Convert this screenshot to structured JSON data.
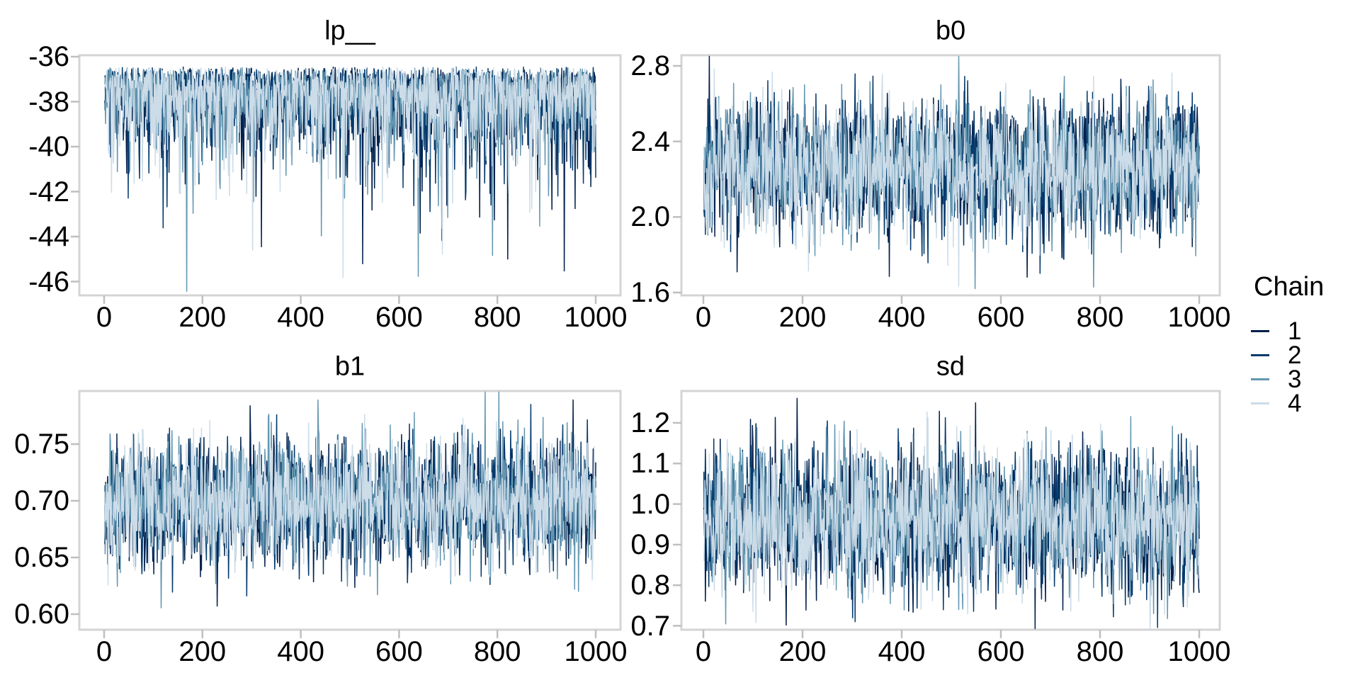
{
  "style": {
    "background": "#ffffff",
    "panel_border_color": "#d4d4d4",
    "tick_mark_color": "#bfbfbf",
    "text_color": "#000000"
  },
  "legend": {
    "title": "Chain",
    "items": [
      {
        "label": "1",
        "color": "#011f4b"
      },
      {
        "label": "2",
        "color": "#03396c"
      },
      {
        "label": "3",
        "color": "#6497b1"
      },
      {
        "label": "4",
        "color": "#ccdce8"
      }
    ]
  },
  "chart_data": [
    {
      "type": "line",
      "subtype": "mcmc_trace",
      "title": "lp__",
      "x_tick_labels": [
        "0",
        "200",
        "400",
        "600",
        "800",
        "1000"
      ],
      "x_tick_values": [
        0,
        200,
        400,
        600,
        800,
        1000
      ],
      "y_tick_labels": [
        "-36",
        "-38",
        "-40",
        "-42",
        "-44",
        "-46"
      ],
      "y_tick_values": [
        -36,
        -38,
        -40,
        -42,
        -44,
        -46
      ],
      "x_range": [
        1,
        1000
      ],
      "y_view_range": [
        -46.6,
        -35.9
      ],
      "grid": "off",
      "chains": [
        "1",
        "2",
        "3",
        "4"
      ],
      "points_per_chain": 1000,
      "observed": {
        "max": -36.45,
        "min": -46.3,
        "dense_band": [
          -38.9,
          -36.6
        ]
      },
      "gen": {
        "model": "neg_half_chisq3",
        "base": -36.45,
        "scale": 1.0,
        "ar1": 0.1
      }
    },
    {
      "type": "line",
      "subtype": "mcmc_trace",
      "title": "b0",
      "x_tick_labels": [
        "0",
        "200",
        "400",
        "600",
        "800",
        "1000"
      ],
      "x_tick_values": [
        0,
        200,
        400,
        600,
        800,
        1000
      ],
      "y_tick_labels": [
        "2.8",
        "2.4",
        "2.0",
        "1.6"
      ],
      "y_tick_values": [
        2.8,
        2.4,
        2.0,
        1.6
      ],
      "x_range": [
        1,
        1000
      ],
      "y_view_range": [
        1.59,
        2.86
      ],
      "grid": "off",
      "chains": [
        "1",
        "2",
        "3",
        "4"
      ],
      "points_per_chain": 1000,
      "observed": {
        "max": 2.8,
        "min": 1.61,
        "dense_band": [
          2.05,
          2.48
        ]
      },
      "gen": {
        "model": "normal",
        "mean": 2.26,
        "sd": 0.175,
        "ar1": 0.1
      }
    },
    {
      "type": "line",
      "subtype": "mcmc_trace",
      "title": "b1",
      "x_tick_labels": [
        "0",
        "200",
        "400",
        "600",
        "800",
        "1000"
      ],
      "x_tick_values": [
        0,
        200,
        400,
        600,
        800,
        1000
      ],
      "y_tick_labels": [
        "0.75",
        "0.70",
        "0.65",
        "0.60"
      ],
      "y_tick_values": [
        0.75,
        0.7,
        0.65,
        0.6
      ],
      "x_range": [
        1,
        1000
      ],
      "y_view_range": [
        0.586,
        0.797
      ],
      "grid": "off",
      "chains": [
        "1",
        "2",
        "3",
        "4"
      ],
      "points_per_chain": 1000,
      "observed": {
        "max": 0.787,
        "min": 0.602,
        "dense_band": [
          0.665,
          0.735
        ]
      },
      "gen": {
        "model": "normal",
        "mean": 0.699,
        "sd": 0.027,
        "ar1": 0.1
      }
    },
    {
      "type": "line",
      "subtype": "mcmc_trace",
      "title": "sd",
      "x_tick_labels": [
        "0",
        "200",
        "400",
        "600",
        "800",
        "1000"
      ],
      "x_tick_values": [
        0,
        200,
        400,
        600,
        800,
        1000
      ],
      "y_tick_labels": [
        "1.2",
        "1.1",
        "1.0",
        "0.9",
        "0.8",
        "0.7"
      ],
      "y_tick_values": [
        1.2,
        1.1,
        1.0,
        0.9,
        0.8,
        0.7
      ],
      "x_range": [
        1,
        1000
      ],
      "y_view_range": [
        0.69,
        1.28
      ],
      "grid": "off",
      "chains": [
        "1",
        "2",
        "3",
        "4"
      ],
      "points_per_chain": 1000,
      "observed": {
        "max": 1.25,
        "min": 0.71,
        "dense_band": [
          0.86,
          1.08
        ]
      },
      "gen": {
        "model": "normal",
        "mean": 0.962,
        "sd": 0.087,
        "ar1": 0.1
      }
    }
  ]
}
